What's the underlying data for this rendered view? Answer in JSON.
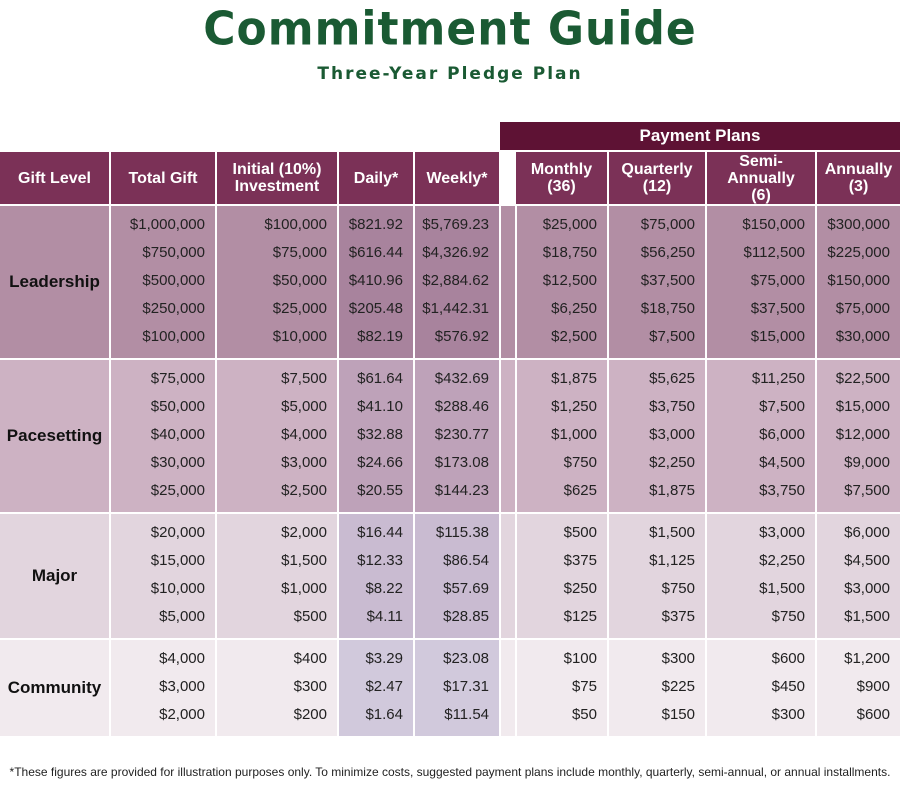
{
  "title": "Commitment Guide",
  "subtitle": "Three-Year Pledge Plan",
  "payment_plans_label": "Payment Plans",
  "headers": {
    "gift_level": "Gift Level",
    "total_gift": "Total Gift",
    "initial_1": "Initial (10%)",
    "initial_2": "Investment",
    "daily": "Daily*",
    "weekly": "Weekly*",
    "monthly_1": "Monthly",
    "monthly_2": "(36)",
    "quarterly_1": "Quarterly",
    "quarterly_2": "(12)",
    "semi_1": "Semi-Annually",
    "semi_2": "(6)",
    "annual_1": "Annually",
    "annual_2": "(3)"
  },
  "groups": [
    {
      "level": "Leadership",
      "rows": [
        [
          "$1,000,000",
          "$100,000",
          "$821.92",
          "$5,769.23",
          "$25,000",
          "$75,000",
          "$150,000",
          "$300,000"
        ],
        [
          "$750,000",
          "$75,000",
          "$616.44",
          "$4,326.92",
          "$18,750",
          "$56,250",
          "$112,500",
          "$225,000"
        ],
        [
          "$500,000",
          "$50,000",
          "$410.96",
          "$2,884.62",
          "$12,500",
          "$37,500",
          "$75,000",
          "$150,000"
        ],
        [
          "$250,000",
          "$25,000",
          "$205.48",
          "$1,442.31",
          "$6,250",
          "$18,750",
          "$37,500",
          "$75,000"
        ],
        [
          "$100,000",
          "$10,000",
          "$82.19",
          "$576.92",
          "$2,500",
          "$7,500",
          "$15,000",
          "$30,000"
        ]
      ]
    },
    {
      "level": "Pacesetting",
      "rows": [
        [
          "$75,000",
          "$7,500",
          "$61.64",
          "$432.69",
          "$1,875",
          "$5,625",
          "$11,250",
          "$22,500"
        ],
        [
          "$50,000",
          "$5,000",
          "$41.10",
          "$288.46",
          "$1,250",
          "$3,750",
          "$7,500",
          "$15,000"
        ],
        [
          "$40,000",
          "$4,000",
          "$32.88",
          "$230.77",
          "$1,000",
          "$3,000",
          "$6,000",
          "$12,000"
        ],
        [
          "$30,000",
          "$3,000",
          "$24.66",
          "$173.08",
          "$750",
          "$2,250",
          "$4,500",
          "$9,000"
        ],
        [
          "$25,000",
          "$2,500",
          "$20.55",
          "$144.23",
          "$625",
          "$1,875",
          "$3,750",
          "$7,500"
        ]
      ]
    },
    {
      "level": "Major",
      "rows": [
        [
          "$20,000",
          "$2,000",
          "$16.44",
          "$115.38",
          "$500",
          "$1,500",
          "$3,000",
          "$6,000"
        ],
        [
          "$15,000",
          "$1,500",
          "$12.33",
          "$86.54",
          "$375",
          "$1,125",
          "$2,250",
          "$4,500"
        ],
        [
          "$10,000",
          "$1,000",
          "$8.22",
          "$57.69",
          "$250",
          "$750",
          "$1,500",
          "$3,000"
        ],
        [
          "$5,000",
          "$500",
          "$4.11",
          "$28.85",
          "$125",
          "$375",
          "$750",
          "$1,500"
        ]
      ]
    },
    {
      "level": "Community",
      "rows": [
        [
          "$4,000",
          "$400",
          "$3.29",
          "$23.08",
          "$100",
          "$300",
          "$600",
          "$1,200"
        ],
        [
          "$3,000",
          "$300",
          "$2.47",
          "$17.31",
          "$75",
          "$225",
          "$450",
          "$900"
        ],
        [
          "$2,000",
          "$200",
          "$1.64",
          "$11.54",
          "$50",
          "$150",
          "$300",
          "$600"
        ]
      ]
    }
  ],
  "footnote": "*These figures are provided for illustration purposes only. To minimize costs, suggested payment plans include monthly, quarterly, semi-annual, or annual installments."
}
